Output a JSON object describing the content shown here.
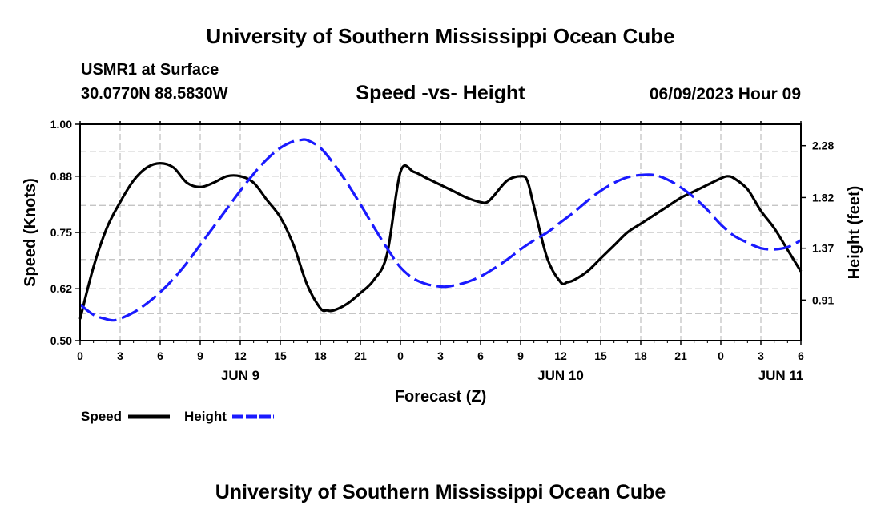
{
  "page": {
    "title_top": "University of Southern Mississippi Ocean Cube",
    "title_bottom": "University of Southern Mississippi Ocean Cube",
    "station": "USMR1 at Surface",
    "location": "30.0770N  88.5830W",
    "date": "06/09/2023 Hour 09"
  },
  "chart_data": {
    "type": "line",
    "title": "Speed -vs- Height",
    "xlabel": "Forecast (Z)",
    "ylabel_left": "Speed (Knots)",
    "ylabel_right": "Height (feet)",
    "x_range_hours": [
      0,
      54
    ],
    "x_ticks": [
      {
        "h": 0,
        "label": "0"
      },
      {
        "h": 3,
        "label": "3"
      },
      {
        "h": 6,
        "label": "6"
      },
      {
        "h": 9,
        "label": "9"
      },
      {
        "h": 12,
        "label": "12"
      },
      {
        "h": 15,
        "label": "15"
      },
      {
        "h": 18,
        "label": "18"
      },
      {
        "h": 21,
        "label": "21"
      },
      {
        "h": 24,
        "label": "0"
      },
      {
        "h": 27,
        "label": "3"
      },
      {
        "h": 30,
        "label": "6"
      },
      {
        "h": 33,
        "label": "9"
      },
      {
        "h": 36,
        "label": "12"
      },
      {
        "h": 39,
        "label": "15"
      },
      {
        "h": 42,
        "label": "18"
      },
      {
        "h": 45,
        "label": "21"
      },
      {
        "h": 48,
        "label": "0"
      },
      {
        "h": 51,
        "label": "3"
      },
      {
        "h": 54,
        "label": "6"
      }
    ],
    "day_labels": [
      {
        "h": 12,
        "label": "JUN 9"
      },
      {
        "h": 36,
        "label": "JUN 10"
      },
      {
        "h": 52.5,
        "label": "JUN 11"
      }
    ],
    "ylim_left": [
      0.5,
      1.0
    ],
    "yticks_left": [
      "1.00",
      "0.88",
      "0.75",
      "0.62",
      "0.50"
    ],
    "ylim_right": [
      0.55,
      2.47
    ],
    "yticks_right": [
      "2.28",
      "1.82",
      "1.37",
      "0.91"
    ],
    "grid": true,
    "legend": {
      "speed_label": "Speed",
      "height_label": "Height",
      "placement": "bottom-left"
    },
    "series": [
      {
        "name": "Speed",
        "color": "#000000",
        "style": "solid",
        "axis": "left",
        "x": [
          0,
          1,
          2,
          3,
          4,
          5,
          6,
          7,
          8,
          9,
          10,
          11,
          12,
          13,
          14,
          15,
          16,
          17,
          18,
          18.5,
          19,
          20,
          21,
          22,
          23,
          24,
          25,
          26,
          27,
          28,
          29,
          30,
          30.5,
          31,
          32,
          33,
          33.5,
          34,
          35,
          36,
          36.5,
          37,
          38,
          39,
          40,
          41,
          42,
          43,
          44,
          45,
          46,
          47,
          48,
          48.5,
          49,
          50,
          51,
          52,
          53,
          54
        ],
        "y": [
          0.55,
          0.67,
          0.76,
          0.82,
          0.87,
          0.9,
          0.91,
          0.9,
          0.865,
          0.855,
          0.865,
          0.88,
          0.88,
          0.865,
          0.825,
          0.785,
          0.72,
          0.63,
          0.575,
          0.57,
          0.57,
          0.585,
          0.61,
          0.64,
          0.7,
          0.89,
          0.89,
          0.875,
          0.86,
          0.845,
          0.83,
          0.82,
          0.82,
          0.835,
          0.87,
          0.88,
          0.87,
          0.81,
          0.69,
          0.635,
          0.635,
          0.64,
          0.66,
          0.69,
          0.72,
          0.75,
          0.77,
          0.79,
          0.81,
          0.83,
          0.845,
          0.86,
          0.875,
          0.88,
          0.875,
          0.85,
          0.8,
          0.76,
          0.71,
          0.66
        ]
      },
      {
        "name": "Height",
        "color": "#1a1aff",
        "style": "dashed",
        "axis": "right",
        "x": [
          0,
          1,
          2,
          2.5,
          3,
          4,
          5,
          6,
          7,
          8,
          9,
          10,
          11,
          12,
          13,
          14,
          15,
          16,
          16.5,
          17,
          18,
          19,
          20,
          21,
          22,
          23,
          24,
          25,
          26,
          27,
          27.5,
          28,
          29,
          30,
          31,
          32,
          33,
          34,
          35,
          36,
          37,
          38,
          39,
          40,
          41,
          42,
          43,
          44,
          45,
          46,
          47,
          48,
          49,
          50,
          51,
          52,
          53,
          54
        ],
        "y": [
          0.87,
          0.78,
          0.74,
          0.73,
          0.745,
          0.8,
          0.88,
          0.98,
          1.1,
          1.24,
          1.4,
          1.56,
          1.72,
          1.88,
          2.03,
          2.16,
          2.26,
          2.32,
          2.33,
          2.33,
          2.26,
          2.12,
          1.95,
          1.76,
          1.56,
          1.37,
          1.2,
          1.1,
          1.05,
          1.03,
          1.03,
          1.04,
          1.07,
          1.12,
          1.19,
          1.27,
          1.36,
          1.44,
          1.51,
          1.6,
          1.69,
          1.79,
          1.88,
          1.95,
          2.0,
          2.02,
          2.02,
          1.98,
          1.91,
          1.82,
          1.71,
          1.58,
          1.48,
          1.42,
          1.37,
          1.36,
          1.38,
          1.44
        ]
      }
    ]
  }
}
